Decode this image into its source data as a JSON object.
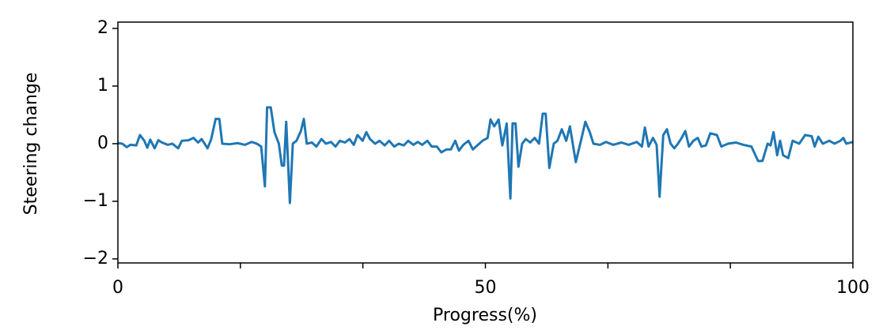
{
  "chart_data": {
    "type": "line",
    "xlabel": "Progress(%)",
    "ylabel": "Steering change",
    "color": "#1f77b4",
    "xlim": [
      0,
      100
    ],
    "ylim": [
      -2.07,
      2.11
    ],
    "xticks": [
      0,
      50,
      100
    ],
    "xminorticks": [
      16.67,
      33.33,
      66.67,
      83.33
    ],
    "yticks": [
      {
        "value": -2,
        "label": "−2"
      },
      {
        "value": -1,
        "label": "−1"
      },
      0,
      1,
      2
    ],
    "x": [
      0.0,
      0.6,
      1.2,
      1.7,
      2.5,
      3.0,
      3.6,
      4.0,
      4.4,
      5.0,
      5.5,
      6.0,
      6.8,
      7.4,
      8.2,
      8.7,
      9.6,
      10.3,
      10.9,
      11.4,
      12.2,
      12.7,
      13.3,
      13.8,
      14.2,
      15.2,
      16.3,
      17.3,
      18.2,
      18.9,
      19.5,
      20.0,
      20.3,
      20.8,
      21.3,
      21.9,
      22.3,
      22.6,
      22.9,
      23.4,
      23.8,
      24.3,
      24.9,
      25.3,
      25.7,
      26.4,
      27.0,
      27.7,
      28.3,
      29.0,
      29.6,
      30.2,
      30.9,
      31.5,
      32.1,
      32.6,
      33.3,
      33.8,
      34.3,
      35.0,
      35.6,
      36.3,
      36.9,
      37.6,
      38.2,
      38.9,
      39.5,
      40.2,
      40.8,
      41.4,
      42.1,
      42.7,
      43.4,
      44.0,
      44.7,
      45.3,
      45.9,
      46.4,
      47.0,
      47.7,
      48.3,
      49.0,
      49.6,
      50.3,
      50.7,
      51.2,
      51.8,
      52.3,
      52.9,
      53.4,
      53.7,
      54.1,
      54.5,
      55.0,
      55.5,
      56.1,
      56.7,
      57.3,
      57.8,
      58.2,
      58.7,
      59.3,
      59.8,
      60.4,
      61.0,
      61.5,
      62.3,
      63.0,
      63.6,
      64.2,
      64.7,
      65.6,
      66.4,
      67.4,
      68.5,
      69.5,
      70.6,
      71.3,
      71.7,
      72.2,
      72.8,
      73.3,
      73.7,
      74.2,
      74.7,
      75.2,
      75.7,
      76.2,
      76.7,
      77.2,
      77.7,
      78.3,
      78.9,
      79.4,
      80.0,
      80.6,
      81.5,
      82.1,
      83.0,
      84.1,
      85.1,
      86.2,
      87.1,
      87.7,
      88.4,
      88.8,
      89.2,
      89.7,
      90.1,
      90.5,
      91.2,
      91.8,
      92.7,
      93.5,
      94.4,
      94.8,
      95.3,
      95.9,
      96.8,
      97.5,
      98.3,
      98.7,
      99.1,
      100.0
    ],
    "values": [
      0.01,
      0.0,
      -0.06,
      -0.02,
      -0.03,
      0.15,
      0.05,
      -0.07,
      0.07,
      -0.08,
      0.06,
      0.02,
      -0.02,
      0.0,
      -0.08,
      0.05,
      0.06,
      0.1,
      0.02,
      0.08,
      -0.08,
      0.08,
      0.43,
      0.43,
      0.0,
      -0.01,
      0.01,
      -0.02,
      0.03,
      0.0,
      -0.05,
      -0.74,
      0.63,
      0.63,
      0.2,
      0.0,
      -0.38,
      -0.38,
      0.38,
      -1.03,
      0.0,
      0.05,
      0.22,
      0.43,
      0.0,
      0.02,
      -0.05,
      0.08,
      0.0,
      0.03,
      -0.05,
      0.05,
      0.02,
      0.08,
      -0.02,
      0.15,
      0.05,
      0.2,
      0.08,
      0.0,
      0.05,
      -0.03,
      0.05,
      -0.05,
      0.0,
      -0.03,
      0.05,
      -0.02,
      0.03,
      -0.02,
      0.05,
      -0.05,
      -0.05,
      -0.15,
      -0.1,
      -0.1,
      0.05,
      -0.12,
      -0.02,
      0.05,
      -0.1,
      -0.02,
      0.05,
      0.1,
      0.42,
      0.3,
      0.42,
      -0.03,
      0.35,
      -0.95,
      0.35,
      0.35,
      -0.4,
      0.0,
      0.08,
      0.02,
      0.1,
      0.0,
      0.52,
      0.52,
      -0.42,
      0.0,
      0.05,
      0.25,
      0.05,
      0.3,
      -0.32,
      0.05,
      0.38,
      0.2,
      0.0,
      -0.02,
      0.03,
      -0.02,
      0.02,
      -0.02,
      0.03,
      -0.05,
      0.28,
      -0.05,
      0.1,
      -0.02,
      -0.92,
      0.15,
      0.25,
      0.0,
      -0.08,
      0.0,
      0.1,
      0.22,
      -0.05,
      0.05,
      0.1,
      -0.05,
      -0.03,
      0.18,
      0.15,
      -0.05,
      0.0,
      0.02,
      -0.02,
      -0.05,
      -0.3,
      -0.3,
      0.0,
      -0.03,
      0.2,
      -0.2,
      0.05,
      -0.2,
      -0.25,
      0.05,
      0.0,
      0.15,
      0.13,
      -0.05,
      0.12,
      0.0,
      0.05,
      0.0,
      0.05,
      0.1,
      0.0,
      0.03
    ]
  }
}
